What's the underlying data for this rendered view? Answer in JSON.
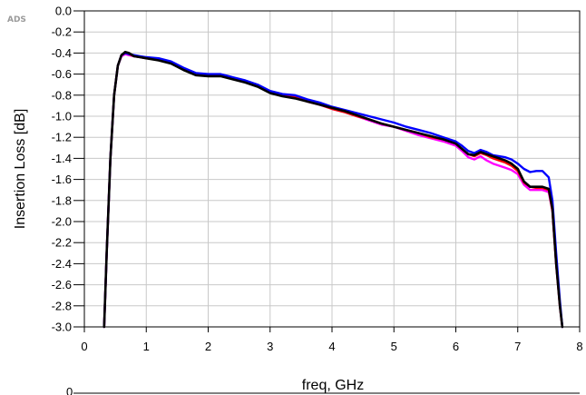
{
  "watermark": "ADS",
  "chart_data": {
    "type": "line",
    "title": "",
    "xlabel": "freq, GHz",
    "ylabel": "Insertion Loss [dB]",
    "xlim": [
      0,
      8
    ],
    "ylim": [
      -3.0,
      0.0
    ],
    "xticks": [
      0,
      1,
      2,
      3,
      4,
      5,
      6,
      7,
      8
    ],
    "yticks": [
      0.0,
      -0.2,
      -0.4,
      -0.6,
      -0.8,
      -1.0,
      -1.2,
      -1.4,
      -1.6,
      -1.8,
      -2.0,
      -2.2,
      -2.4,
      -2.6,
      -2.8,
      -3.0
    ],
    "ytick_labels": [
      "0.0",
      "-0.2",
      "-0.4",
      "-0.6",
      "-0.8",
      "-1.0",
      "-1.2",
      "-1.4",
      "-1.6",
      "-1.8",
      "-2.0",
      "-2.2",
      "-2.4",
      "-2.6",
      "-2.8",
      "-3.0"
    ],
    "grid": true,
    "next_plot_partial_ylabel": "0",
    "series": [
      {
        "color": "#ff00ff",
        "x": [
          0.32,
          0.36,
          0.42,
          0.48,
          0.54,
          0.6,
          0.66,
          0.72,
          0.8,
          0.9,
          1.0,
          1.2,
          1.4,
          1.6,
          1.8,
          2.0,
          2.2,
          2.4,
          2.6,
          2.8,
          3.0,
          3.2,
          3.4,
          3.6,
          3.8,
          4.0,
          4.2,
          4.4,
          4.6,
          4.8,
          5.0,
          5.2,
          5.4,
          5.6,
          5.8,
          6.0,
          6.1,
          6.2,
          6.3,
          6.4,
          6.5,
          6.6,
          6.7,
          6.8,
          6.9,
          7.0,
          7.1,
          7.2,
          7.3,
          7.4,
          7.5,
          7.56,
          7.62,
          7.68,
          7.72
        ],
        "y": [
          -3.0,
          -2.3,
          -1.4,
          -0.8,
          -0.52,
          -0.43,
          -0.41,
          -0.42,
          -0.43,
          -0.44,
          -0.45,
          -0.46,
          -0.49,
          -0.55,
          -0.6,
          -0.61,
          -0.61,
          -0.64,
          -0.67,
          -0.71,
          -0.77,
          -0.8,
          -0.82,
          -0.86,
          -0.89,
          -0.93,
          -0.96,
          -1.0,
          -1.04,
          -1.08,
          -1.1,
          -1.14,
          -1.18,
          -1.21,
          -1.24,
          -1.28,
          -1.33,
          -1.39,
          -1.41,
          -1.38,
          -1.42,
          -1.45,
          -1.47,
          -1.49,
          -1.51,
          -1.55,
          -1.65,
          -1.7,
          -1.7,
          -1.7,
          -1.72,
          -1.9,
          -2.4,
          -2.8,
          -3.0
        ]
      },
      {
        "color": "#ff0000",
        "x": [
          0.32,
          0.36,
          0.42,
          0.48,
          0.54,
          0.6,
          0.66,
          0.72,
          0.8,
          0.9,
          1.0,
          1.2,
          1.4,
          1.6,
          1.8,
          2.0,
          2.2,
          2.4,
          2.6,
          2.8,
          3.0,
          3.2,
          3.4,
          3.6,
          3.8,
          4.0,
          4.2,
          4.4,
          4.6,
          4.8,
          5.0,
          5.2,
          5.4,
          5.6,
          5.8,
          6.0,
          6.1,
          6.2,
          6.3,
          6.4,
          6.5,
          6.6,
          6.7,
          6.8,
          6.9,
          7.0,
          7.1,
          7.2,
          7.3,
          7.4,
          7.5,
          7.56,
          7.62,
          7.68,
          7.72
        ],
        "y": [
          -3.0,
          -2.3,
          -1.4,
          -0.8,
          -0.52,
          -0.42,
          -0.4,
          -0.41,
          -0.43,
          -0.44,
          -0.45,
          -0.46,
          -0.49,
          -0.55,
          -0.6,
          -0.61,
          -0.61,
          -0.64,
          -0.67,
          -0.71,
          -0.77,
          -0.8,
          -0.82,
          -0.86,
          -0.89,
          -0.93,
          -0.96,
          -1.0,
          -1.03,
          -1.07,
          -1.1,
          -1.13,
          -1.16,
          -1.2,
          -1.22,
          -1.26,
          -1.31,
          -1.36,
          -1.38,
          -1.35,
          -1.37,
          -1.4,
          -1.42,
          -1.44,
          -1.47,
          -1.52,
          -1.63,
          -1.67,
          -1.68,
          -1.68,
          -1.7,
          -1.9,
          -2.4,
          -2.8,
          -3.0
        ]
      },
      {
        "color": "#0000ff",
        "x": [
          0.32,
          0.36,
          0.42,
          0.48,
          0.54,
          0.6,
          0.66,
          0.72,
          0.8,
          0.9,
          1.0,
          1.2,
          1.4,
          1.6,
          1.8,
          2.0,
          2.2,
          2.4,
          2.6,
          2.8,
          3.0,
          3.2,
          3.4,
          3.6,
          3.8,
          4.0,
          4.2,
          4.4,
          4.6,
          4.8,
          5.0,
          5.2,
          5.4,
          5.6,
          5.8,
          6.0,
          6.1,
          6.2,
          6.3,
          6.4,
          6.5,
          6.6,
          6.7,
          6.8,
          6.9,
          7.0,
          7.1,
          7.2,
          7.3,
          7.4,
          7.5,
          7.56,
          7.62,
          7.68,
          7.72
        ],
        "y": [
          -3.0,
          -2.3,
          -1.4,
          -0.8,
          -0.52,
          -0.42,
          -0.4,
          -0.41,
          -0.42,
          -0.43,
          -0.44,
          -0.45,
          -0.48,
          -0.54,
          -0.59,
          -0.6,
          -0.6,
          -0.63,
          -0.66,
          -0.7,
          -0.76,
          -0.79,
          -0.8,
          -0.84,
          -0.87,
          -0.91,
          -0.94,
          -0.97,
          -1.0,
          -1.03,
          -1.06,
          -1.1,
          -1.13,
          -1.16,
          -1.2,
          -1.24,
          -1.28,
          -1.33,
          -1.35,
          -1.32,
          -1.34,
          -1.37,
          -1.38,
          -1.39,
          -1.41,
          -1.45,
          -1.5,
          -1.53,
          -1.52,
          -1.52,
          -1.58,
          -1.8,
          -2.3,
          -2.75,
          -3.0
        ]
      },
      {
        "color": "#000000",
        "x": [
          0.32,
          0.36,
          0.42,
          0.48,
          0.54,
          0.6,
          0.66,
          0.72,
          0.8,
          0.9,
          1.0,
          1.2,
          1.4,
          1.6,
          1.8,
          2.0,
          2.2,
          2.4,
          2.6,
          2.8,
          3.0,
          3.2,
          3.4,
          3.6,
          3.8,
          4.0,
          4.2,
          4.4,
          4.6,
          4.8,
          5.0,
          5.2,
          5.4,
          5.6,
          5.8,
          6.0,
          6.1,
          6.2,
          6.3,
          6.4,
          6.5,
          6.6,
          6.7,
          6.8,
          6.9,
          7.0,
          7.1,
          7.2,
          7.3,
          7.4,
          7.5,
          7.56,
          7.62,
          7.68,
          7.72
        ],
        "y": [
          -3.0,
          -2.3,
          -1.4,
          -0.8,
          -0.52,
          -0.42,
          -0.39,
          -0.4,
          -0.43,
          -0.44,
          -0.45,
          -0.47,
          -0.5,
          -0.56,
          -0.61,
          -0.62,
          -0.62,
          -0.65,
          -0.68,
          -0.72,
          -0.78,
          -0.81,
          -0.83,
          -0.86,
          -0.89,
          -0.92,
          -0.95,
          -0.99,
          -1.03,
          -1.07,
          -1.1,
          -1.13,
          -1.16,
          -1.19,
          -1.22,
          -1.26,
          -1.31,
          -1.36,
          -1.37,
          -1.34,
          -1.36,
          -1.38,
          -1.4,
          -1.42,
          -1.45,
          -1.5,
          -1.62,
          -1.67,
          -1.67,
          -1.67,
          -1.69,
          -1.88,
          -2.4,
          -2.8,
          -3.0
        ]
      }
    ]
  }
}
